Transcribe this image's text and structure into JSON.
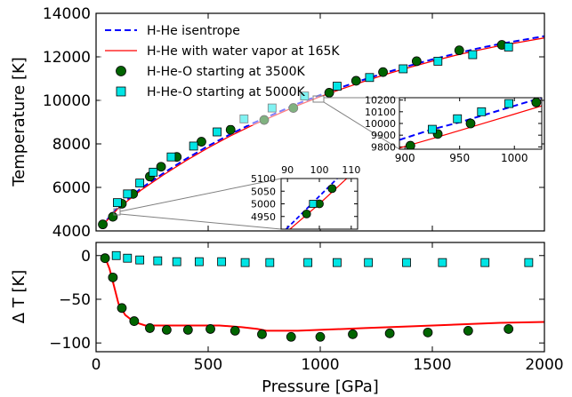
{
  "chart_data": [
    {
      "type": "line",
      "panel": "top",
      "xlabel": "",
      "ylabel": "Temperature [K]",
      "xlim": [
        0,
        2000
      ],
      "ylim": [
        4000,
        14000
      ],
      "xticks": [
        0,
        500,
        1000,
        1500,
        2000
      ],
      "yticks": [
        4000,
        6000,
        8000,
        10000,
        12000,
        14000
      ],
      "ytick_labels": [
        "4000",
        "6000",
        "8000",
        "10000",
        "12000",
        "14000"
      ],
      "legend_position": "top-left",
      "colors": {
        "isentrope": "#0000ff",
        "vapor": "#ff0000",
        "circles": "#006400",
        "squares": "#00e5e5"
      },
      "series": [
        {
          "name": "H-He isentrope",
          "style": "dashed",
          "x": [
            20,
            60,
            100,
            200,
            300,
            400,
            500,
            600,
            700,
            800,
            900,
            1000,
            1100,
            1200,
            1300,
            1400,
            1500,
            1600,
            1700,
            1800,
            1900,
            2000
          ],
          "y": [
            4150,
            4650,
            5100,
            5950,
            6650,
            7300,
            7900,
            8450,
            8950,
            9400,
            9850,
            10250,
            10620,
            10970,
            11300,
            11600,
            11880,
            12140,
            12380,
            12590,
            12770,
            12950
          ]
        },
        {
          "name": "H-He with water vapor at 165K",
          "style": "solid",
          "x": [
            20,
            60,
            100,
            200,
            300,
            400,
            500,
            600,
            700,
            800,
            900,
            1000,
            1100,
            1200,
            1300,
            1400,
            1500,
            1600,
            1700,
            1800,
            1900,
            2000
          ],
          "y": [
            4130,
            4610,
            5050,
            5870,
            6570,
            7220,
            7820,
            8370,
            8870,
            9320,
            9770,
            10170,
            10540,
            10890,
            11220,
            11520,
            11800,
            12060,
            12300,
            12510,
            12690,
            12870
          ]
        },
        {
          "name": "H-He-O starting at 3500K",
          "style": "circle",
          "x": [
            30,
            75,
            115,
            165,
            240,
            290,
            360,
            470,
            600,
            750,
            880,
            1040,
            1160,
            1280,
            1430,
            1620,
            1810
          ],
          "y": [
            4300,
            4650,
            5250,
            5700,
            6500,
            6950,
            7400,
            8100,
            8650,
            9100,
            9650,
            10350,
            10900,
            11300,
            11800,
            12300,
            12550
          ]
        },
        {
          "name": "H-He-O starting at 5000K",
          "style": "square",
          "x": [
            95,
            140,
            195,
            255,
            335,
            435,
            540,
            660,
            785,
            930,
            1075,
            1220,
            1370,
            1525,
            1680,
            1840
          ],
          "y": [
            5300,
            5700,
            6200,
            6700,
            7400,
            7900,
            8550,
            9150,
            9650,
            10200,
            10650,
            11050,
            11450,
            11800,
            12100,
            12450
          ]
        }
      ]
    },
    {
      "type": "line",
      "panel": "top-inset-small",
      "xlim": [
        88,
        112
      ],
      "ylim": [
        4900,
        5100
      ],
      "xticks": [
        90,
        100,
        110
      ],
      "yticks": [
        4950,
        5000,
        5050,
        5100
      ],
      "series": [
        {
          "name": "H-He isentrope",
          "x": [
            88,
            100,
            112
          ],
          "y": [
            4880,
            5030,
            5180
          ]
        },
        {
          "name": "H-He with water vapor at 165K",
          "x": [
            88,
            100,
            112
          ],
          "y": [
            4870,
            5000,
            5140
          ]
        },
        {
          "name": "H-He-O starting at 3500K",
          "x": [
            96,
            100,
            104
          ],
          "y": [
            4960,
            5000,
            5060
          ]
        },
        {
          "name": "H-He-O starting at 5000K",
          "x": [
            98
          ],
          "y": [
            5000
          ]
        }
      ]
    },
    {
      "type": "line",
      "panel": "top-inset-large",
      "xlim": [
        895,
        1025
      ],
      "ylim": [
        9780,
        10220
      ],
      "xticks": [
        900,
        950,
        1000
      ],
      "yticks": [
        9800,
        9900,
        10000,
        10100,
        10200
      ],
      "series": [
        {
          "name": "H-He isentrope",
          "x": [
            895,
            925,
            950,
            975,
            1000,
            1025
          ],
          "y": [
            9860,
            9950,
            10010,
            10080,
            10150,
            10220
          ]
        },
        {
          "name": "H-He with water vapor at 165K",
          "x": [
            895,
            925,
            950,
            975,
            1000,
            1025
          ],
          "y": [
            9790,
            9870,
            9940,
            10010,
            10080,
            10150
          ]
        },
        {
          "name": "H-He-O starting at 3500K",
          "x": [
            905,
            930,
            960,
            1020
          ],
          "y": [
            9810,
            9910,
            10000,
            10180
          ]
        },
        {
          "name": "H-He-O starting at 5000K",
          "x": [
            925,
            948,
            970,
            995
          ],
          "y": [
            9950,
            10040,
            10100,
            10170
          ]
        }
      ]
    },
    {
      "type": "line",
      "panel": "bottom",
      "xlabel": "Pressure [GPa]",
      "ylabel": "Δ T [K]",
      "xlim": [
        0,
        2000
      ],
      "ylim": [
        -110,
        15
      ],
      "xticks": [
        0,
        500,
        1000,
        1500,
        2000
      ],
      "xtick_labels": [
        "0",
        "500",
        "1000",
        "1500",
        "2000"
      ],
      "yticks": [
        0,
        -50,
        -100
      ],
      "ytick_labels": [
        "0",
        "−50",
        "−100"
      ],
      "series": [
        {
          "name": "H-He with water vapor at 165K",
          "style": "solid",
          "x": [
            40,
            60,
            80,
            100,
            130,
            170,
            220,
            270,
            350,
            450,
            550,
            650,
            720,
            760,
            800,
            900,
            1000,
            1200,
            1400,
            1600,
            1800,
            2000
          ],
          "y": [
            -2,
            -15,
            -35,
            -55,
            -68,
            -76,
            -80,
            -80,
            -80,
            -80,
            -80,
            -82,
            -84,
            -86,
            -86,
            -86,
            -85,
            -83,
            -81,
            -79,
            -77,
            -76
          ]
        },
        {
          "name": "H-He-O starting at 3500K",
          "style": "circle",
          "x": [
            40,
            75,
            115,
            170,
            240,
            315,
            410,
            510,
            620,
            740,
            870,
            1000,
            1145,
            1310,
            1480,
            1660,
            1840
          ],
          "y": [
            -3,
            -25,
            -60,
            -75,
            -83,
            -85,
            -85,
            -84,
            -86,
            -90,
            -93,
            -93,
            -90,
            -89,
            -88,
            -86,
            -84
          ]
        },
        {
          "name": "H-He-O starting at 5000K",
          "style": "square",
          "x": [
            90,
            140,
            195,
            275,
            360,
            460,
            560,
            665,
            775,
            945,
            1075,
            1215,
            1385,
            1545,
            1735,
            1930
          ],
          "y": [
            0,
            -3,
            -5,
            -6,
            -7,
            -7,
            -7,
            -8,
            -8,
            -8,
            -8,
            -8,
            -8,
            -8,
            -8,
            -8
          ]
        }
      ]
    }
  ]
}
